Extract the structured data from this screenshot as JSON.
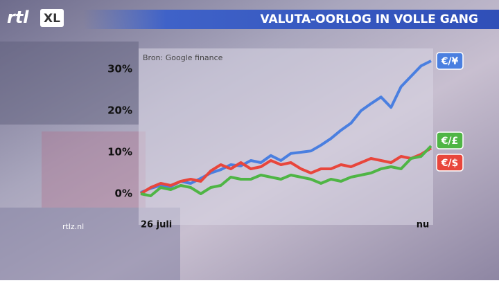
{
  "logo": {
    "main": "rtl",
    "badge": "XL"
  },
  "footer": "rtlz.nl",
  "chart_data": {
    "type": "line",
    "title": "VALUTA-OORLOG IN VOLLE GANG",
    "source": "Bron: Google finance",
    "categories": [
      "26 juli",
      null,
      null,
      null,
      null,
      null,
      null,
      null,
      null,
      null,
      null,
      null,
      null,
      null,
      null,
      null,
      null,
      null,
      null,
      null,
      null,
      null,
      null,
      null,
      null,
      null,
      null,
      null,
      null,
      "nu"
    ],
    "series": [
      {
        "name": "€/¥",
        "color": "#4a7fe0",
        "values": [
          0.3,
          1.3,
          2,
          1.7,
          3,
          2.5,
          3.7,
          5,
          5.8,
          7,
          6.7,
          8,
          7.5,
          9.2,
          8,
          9.7,
          10,
          10.3,
          11.7,
          13.3,
          15.3,
          17,
          20,
          21.7,
          23.3,
          20.8,
          25.8,
          28.3,
          30.8,
          32
        ]
      },
      {
        "name": "€/$",
        "color": "#e8463c",
        "values": [
          0,
          1.5,
          2.5,
          2,
          3,
          3.5,
          3,
          5.5,
          7,
          6,
          7.5,
          6,
          6.5,
          8,
          7,
          7.5,
          6,
          5,
          6,
          6,
          7,
          6.5,
          7.5,
          8.5,
          8,
          7.5,
          9,
          8.5,
          9.5,
          11
        ]
      },
      {
        "name": "€/£",
        "color": "#4fb545",
        "values": [
          0,
          -0.5,
          1.5,
          1,
          2,
          1.5,
          0,
          1.5,
          2,
          4,
          3.5,
          3.5,
          4.5,
          4,
          3.5,
          4.5,
          4,
          3.5,
          2.5,
          3.5,
          3,
          4,
          4.5,
          5,
          6,
          6.5,
          6,
          8.5,
          9,
          11.5
        ]
      }
    ],
    "ylim": [
      -7.5,
      35
    ],
    "yticks": [
      {
        "value": 0,
        "label": "0%"
      },
      {
        "value": 10,
        "label": "10%"
      },
      {
        "value": 20,
        "label": "20%"
      },
      {
        "value": 30,
        "label": "30%"
      }
    ]
  }
}
